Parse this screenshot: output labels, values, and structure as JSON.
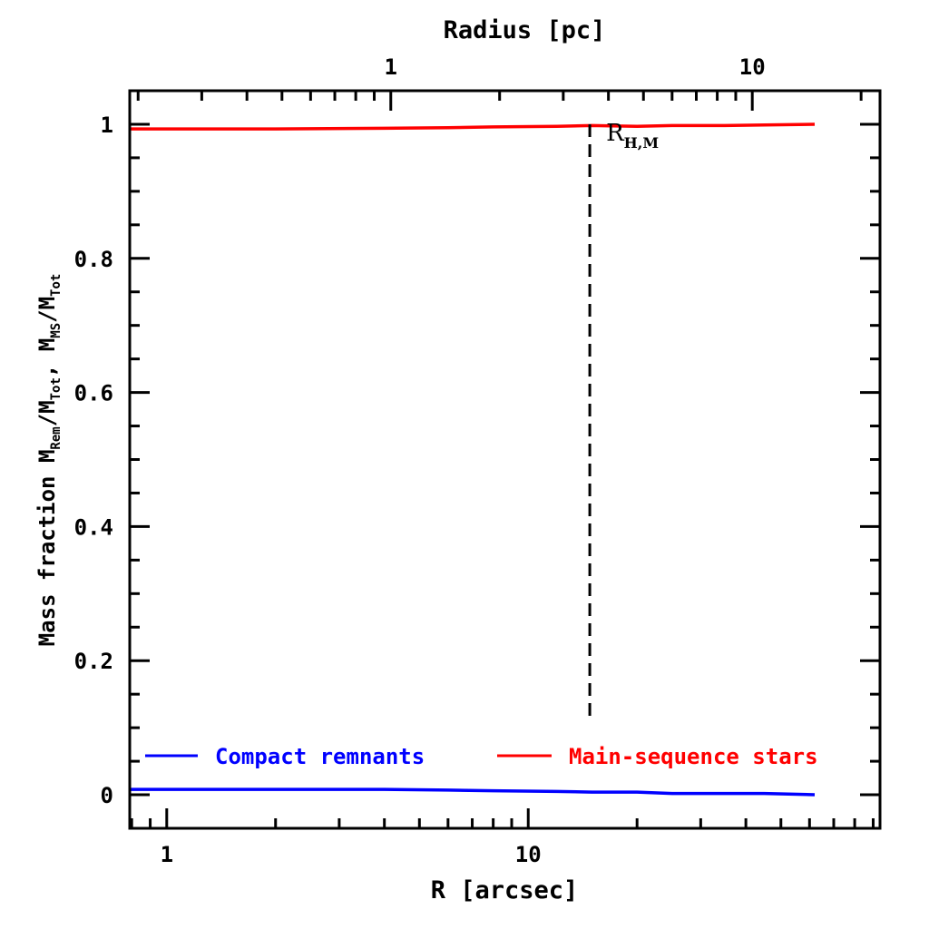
{
  "chart_data": {
    "type": "line",
    "title": "",
    "xlabel": "R [arcsec]",
    "x2label": "Radius [pc]",
    "ylabel_parts": {
      "prefix": "Mass fraction  M",
      "sub1": "Rem",
      "mid1": "/M",
      "sub2": "Tot",
      "mid2": ", M",
      "sub3": "MS",
      "mid3": "/M",
      "sub4": "Tot"
    },
    "xscale": "log",
    "xlim": [
      0.79,
      94
    ],
    "ylim": [
      -0.05,
      1.05
    ],
    "x2_pc_per_arcsec": 0.24,
    "x_tick_labels": [
      {
        "value": 1,
        "label": "1"
      },
      {
        "value": 10,
        "label": "10"
      }
    ],
    "x2_tick_labels": [
      {
        "value": 1,
        "label": "1"
      },
      {
        "value": 10,
        "label": "10"
      }
    ],
    "y_tick_labels": [
      {
        "value": 0,
        "label": "0"
      },
      {
        "value": 0.2,
        "label": "0.2"
      },
      {
        "value": 0.4,
        "label": "0.4"
      },
      {
        "value": 0.6,
        "label": "0.6"
      },
      {
        "value": 0.8,
        "label": "0.8"
      },
      {
        "value": 1,
        "label": "1"
      }
    ],
    "series": [
      {
        "name": "Compact remnants",
        "color": "#0000ff",
        "x": [
          0.79,
          2,
          4,
          6,
          8,
          12,
          15,
          20,
          25,
          35,
          45,
          62
        ],
        "y": [
          0.008,
          0.008,
          0.008,
          0.007,
          0.006,
          0.005,
          0.004,
          0.004,
          0.002,
          0.002,
          0.002,
          0.0
        ]
      },
      {
        "name": "Main-sequence stars",
        "color": "#ff0000",
        "x": [
          0.79,
          2,
          4,
          6,
          8,
          12,
          15,
          20,
          25,
          35,
          45,
          62
        ],
        "y": [
          0.993,
          0.993,
          0.994,
          0.995,
          0.996,
          0.997,
          0.998,
          0.997,
          0.998,
          0.998,
          0.999,
          1.0
        ]
      }
    ],
    "annotations": [
      {
        "type": "vline",
        "x": 14.8,
        "style": "dashed",
        "y_range": [
          0.1,
          1.0
        ],
        "label": "R",
        "label_sub": "H,M"
      }
    ],
    "legend": {
      "placement": "bottom",
      "entries": [
        "Compact remnants",
        "Main-sequence stars"
      ]
    },
    "grid": false
  }
}
